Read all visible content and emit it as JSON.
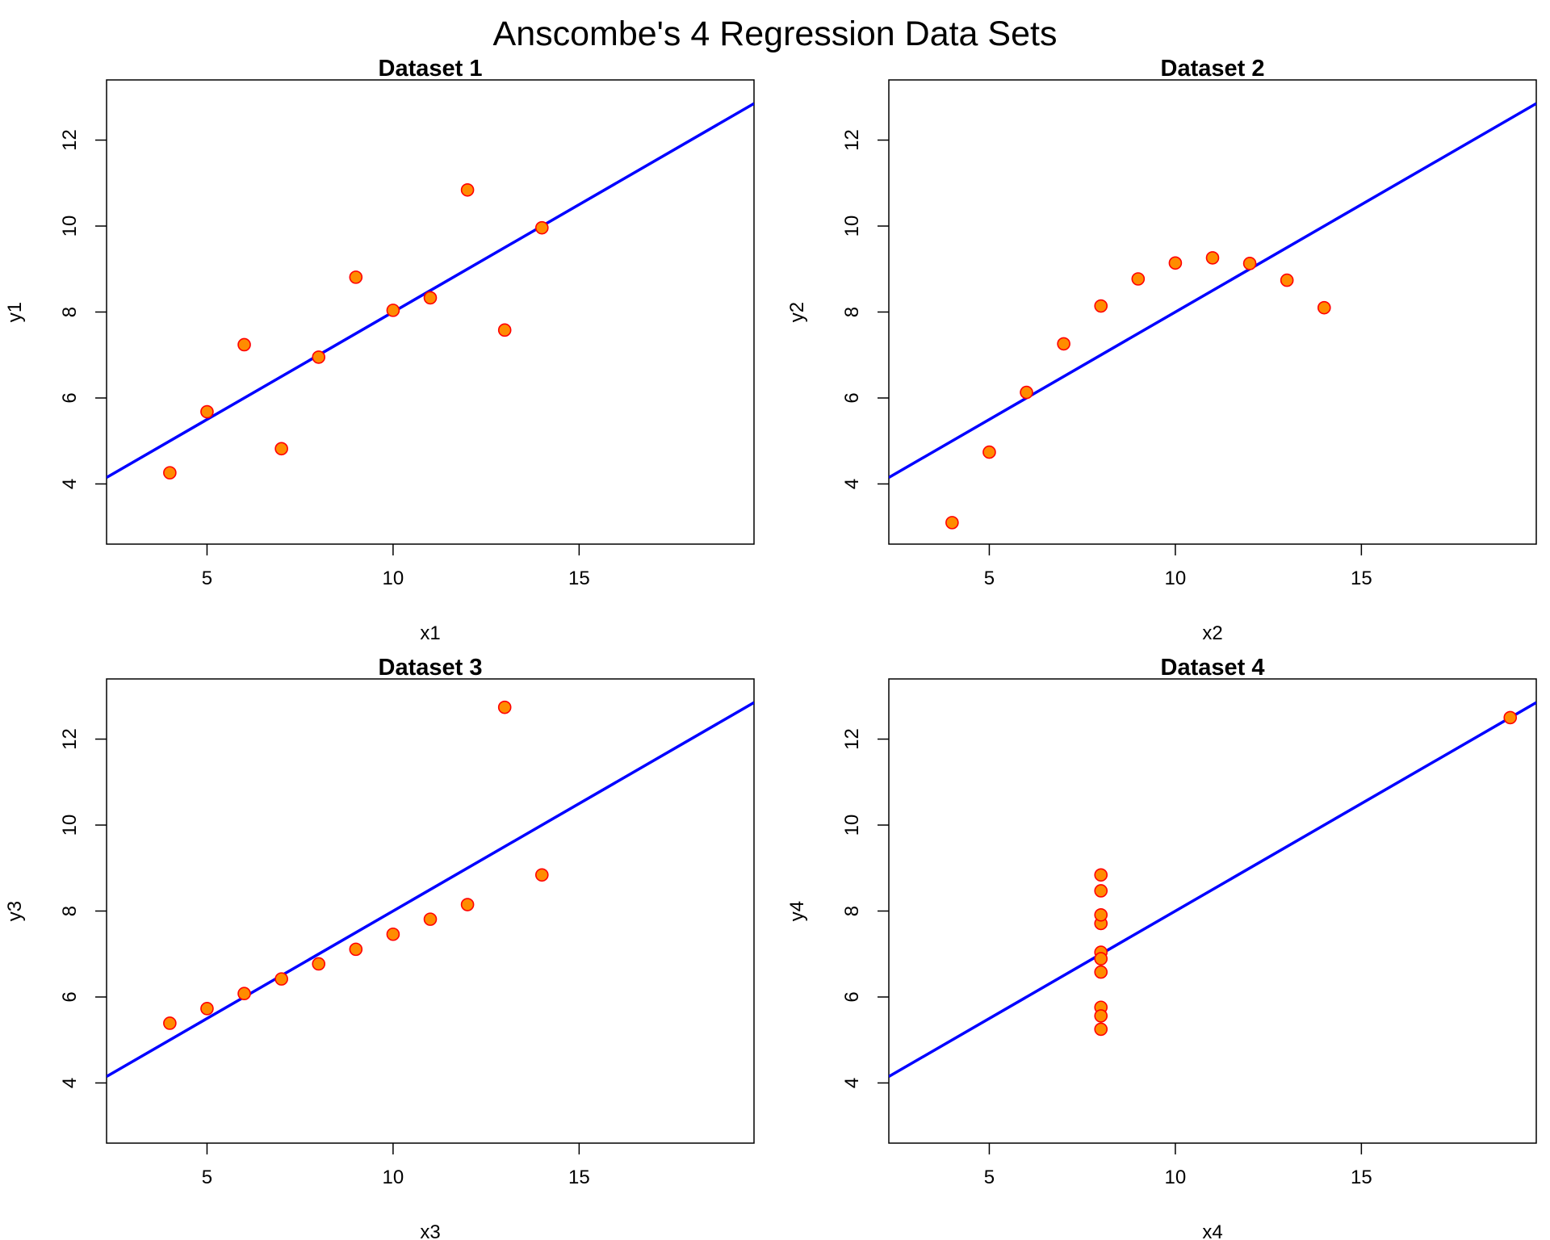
{
  "title": "Anscombe's 4 Regression Data Sets",
  "colors": {
    "point_fill": "#FF8C00",
    "point_stroke": "#FF0000",
    "fit_line": "#0000FF",
    "axis": "#000000"
  },
  "chart_data": [
    {
      "type": "scatter",
      "title": "Dataset 1",
      "xlabel": "x1",
      "ylabel": "y1",
      "xlim": [
        2.3,
        19.7
      ],
      "ylim": [
        2.6,
        13.4
      ],
      "xticks": [
        5,
        10,
        15
      ],
      "yticks": [
        4,
        6,
        8,
        10,
        12
      ],
      "grid": false,
      "x": [
        10,
        8,
        13,
        9,
        11,
        14,
        6,
        4,
        12,
        7,
        5
      ],
      "y": [
        8.04,
        6.95,
        7.58,
        8.81,
        8.33,
        9.96,
        7.24,
        4.26,
        10.84,
        4.82,
        5.68
      ],
      "fit": {
        "intercept": 3.0,
        "slope": 0.5
      }
    },
    {
      "type": "scatter",
      "title": "Dataset 2",
      "xlabel": "x2",
      "ylabel": "y2",
      "xlim": [
        2.3,
        19.7
      ],
      "ylim": [
        2.6,
        13.4
      ],
      "xticks": [
        5,
        10,
        15
      ],
      "yticks": [
        4,
        6,
        8,
        10,
        12
      ],
      "grid": false,
      "x": [
        10,
        8,
        13,
        9,
        11,
        14,
        6,
        4,
        12,
        7,
        5
      ],
      "y": [
        9.14,
        8.14,
        8.74,
        8.77,
        9.26,
        8.1,
        6.13,
        3.1,
        9.13,
        7.26,
        4.74
      ],
      "fit": {
        "intercept": 3.0,
        "slope": 0.5
      }
    },
    {
      "type": "scatter",
      "title": "Dataset 3",
      "xlabel": "x3",
      "ylabel": "y3",
      "xlim": [
        2.3,
        19.7
      ],
      "ylim": [
        2.6,
        13.4
      ],
      "xticks": [
        5,
        10,
        15
      ],
      "yticks": [
        4,
        6,
        8,
        10,
        12
      ],
      "grid": false,
      "x": [
        10,
        8,
        13,
        9,
        11,
        14,
        6,
        4,
        12,
        7,
        5
      ],
      "y": [
        7.46,
        6.77,
        12.74,
        7.11,
        7.81,
        8.84,
        6.08,
        5.39,
        8.15,
        6.42,
        5.73
      ],
      "fit": {
        "intercept": 3.0,
        "slope": 0.5
      }
    },
    {
      "type": "scatter",
      "title": "Dataset 4",
      "xlabel": "x4",
      "ylabel": "y4",
      "xlim": [
        2.3,
        19.7
      ],
      "ylim": [
        2.6,
        13.4
      ],
      "xticks": [
        5,
        10,
        15
      ],
      "yticks": [
        4,
        6,
        8,
        10,
        12
      ],
      "grid": false,
      "x": [
        8,
        8,
        8,
        8,
        8,
        8,
        8,
        19,
        8,
        8,
        8
      ],
      "y": [
        6.58,
        5.76,
        7.71,
        8.84,
        8.47,
        7.04,
        5.25,
        12.5,
        5.56,
        7.91,
        6.89
      ],
      "fit": {
        "intercept": 3.0,
        "slope": 0.5
      }
    }
  ]
}
